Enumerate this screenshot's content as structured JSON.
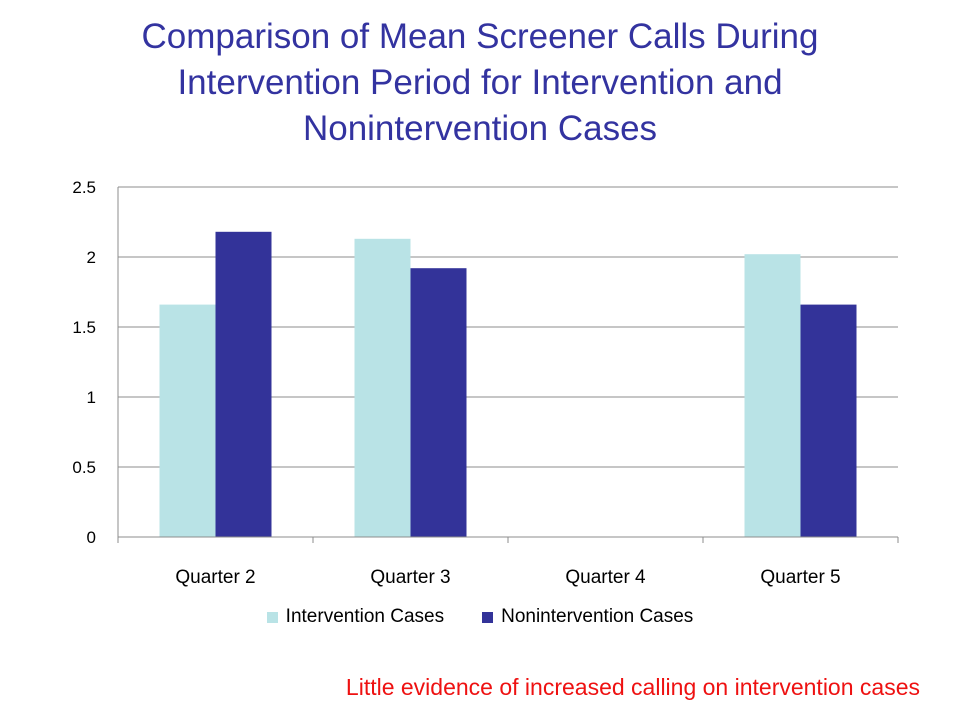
{
  "title_lines": [
    "Comparison of Mean Screener Calls During",
    "Intervention Period for Intervention and",
    "Nonintervention Cases"
  ],
  "caption": "Little evidence of increased calling on intervention cases",
  "colors": {
    "title": "#3333a0",
    "intervention": "#b9e3e6",
    "nonintervention": "#333399",
    "caption": "#ee1111"
  },
  "chart_data": {
    "type": "bar",
    "title": "Comparison of Mean Screener Calls During Intervention Period for Intervention and Nonintervention Cases",
    "categories": [
      "Quarter 2",
      "Quarter 3",
      "Quarter 4",
      "Quarter 5"
    ],
    "series": [
      {
        "name": "Intervention Cases",
        "values": [
          1.66,
          2.13,
          null,
          2.02
        ]
      },
      {
        "name": "Nonintervention Cases",
        "values": [
          2.18,
          1.92,
          null,
          1.66
        ]
      }
    ],
    "yticks": [
      "0",
      "0.5",
      "1",
      "1.5",
      "2",
      "2.5"
    ],
    "ylim": [
      0,
      2.5
    ],
    "grid": true,
    "legend": "bottom"
  }
}
